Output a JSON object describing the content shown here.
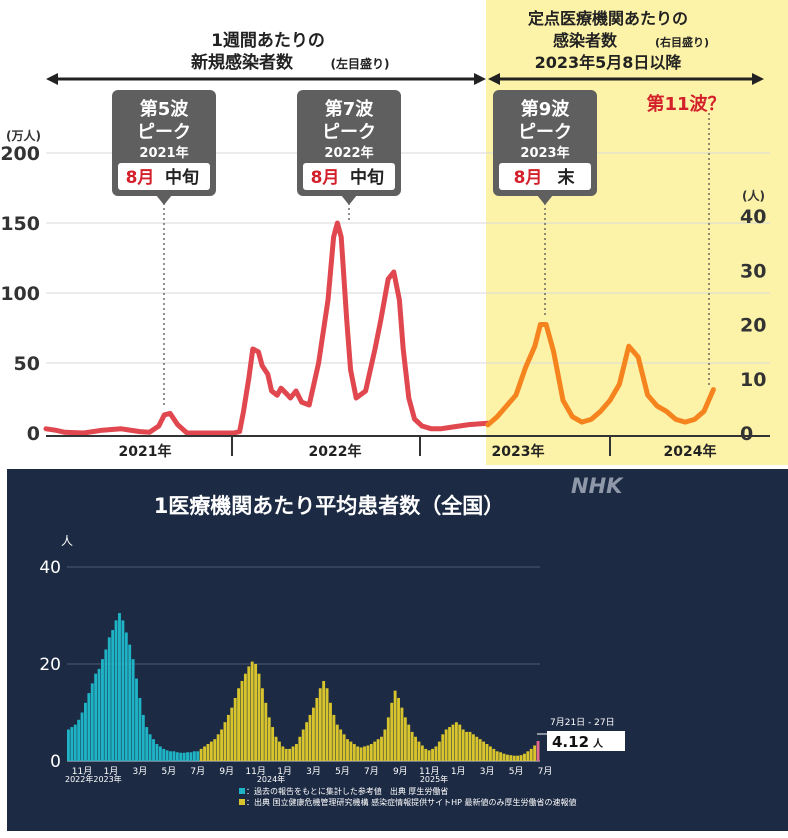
{
  "top": {
    "header_left": [
      "1週間あたりの",
      "新規感染者数"
    ],
    "header_left_axis_note": "(左目盛り)",
    "header_right": [
      "定点医療機関あたりの",
      "感染者数"
    ],
    "header_right_axis_note": "(右目盛り)",
    "header_right_date": "2023年5月8日以降",
    "left_unit": "(万人)",
    "right_unit": "(人)",
    "wave5": {
      "title": "第5波",
      "peak": "ピーク",
      "year": "2021年",
      "month": "8月",
      "period": "中旬"
    },
    "wave7": {
      "title": "第7波",
      "peak": "ピーク",
      "year": "2022年",
      "month": "8月",
      "period": "中旬"
    },
    "wave9": {
      "title": "第9波",
      "peak": "ピーク",
      "year": "2023年",
      "month": "8月",
      "period": "末"
    },
    "wave11": "第11波？",
    "colors": {
      "left_series": "#e0474f",
      "right_series": "#f5841f",
      "shade": "#fdf3a8",
      "box": "#5f5f5f"
    }
  },
  "bottom": {
    "title": "1医療機関あたり平均患者数（全国）",
    "logo": "NHK",
    "y_unit": "人",
    "callout_date": "7月21日 - 27日",
    "callout_value": "4.12",
    "callout_unit": "人",
    "legend1": "：過去の報告をもとに集計した参考値　出典 厚生労働省",
    "legend2": "：出典 国立健康危機管理研究機構 感染症情報提供サイトHP 最新値のみ厚生労働省の速報値",
    "colors": {
      "background": "#1c2a44",
      "ref_bars": "#1fb3c6",
      "main_bars": "#d8c42c",
      "latest_bar": "#e26a8a"
    }
  },
  "chart_data": [
    {
      "type": "line",
      "x_axis_labels": [
        "2021年",
        "2022年",
        "2023年",
        "2024年"
      ],
      "y_left": {
        "ticks": [
          0,
          50,
          100,
          150,
          200
        ],
        "unit": "(万人)",
        "ylim": [
          0,
          200
        ]
      },
      "y_right": {
        "ticks": [
          0,
          10,
          20,
          30,
          40
        ],
        "unit": "(人)",
        "ylim": [
          0,
          40
        ]
      },
      "series": [
        {
          "name": "1週間あたりの新規感染者数",
          "axis": "left",
          "x": [
            2021.0,
            2021.05,
            2021.1,
            2021.2,
            2021.3,
            2021.4,
            2021.5,
            2021.55,
            2021.6,
            2021.63,
            2021.66,
            2021.7,
            2021.75,
            2021.85,
            2021.95,
            2022.0,
            2022.03,
            2022.05,
            2022.08,
            2022.1,
            2022.13,
            2022.15,
            2022.18,
            2022.2,
            2022.23,
            2022.25,
            2022.28,
            2022.3,
            2022.33,
            2022.36,
            2022.4,
            2022.45,
            2022.5,
            2022.53,
            2022.55,
            2022.57,
            2022.6,
            2022.62,
            2022.65,
            2022.7,
            2022.75,
            2022.78,
            2022.82,
            2022.85,
            2022.88,
            2022.9,
            2022.93,
            2022.96,
            2023.0,
            2023.05,
            2023.1,
            2023.15,
            2023.2,
            2023.25,
            2023.35
          ],
          "values": [
            3,
            2,
            0.5,
            0,
            2,
            3,
            1,
            0.5,
            5,
            13,
            14,
            6,
            0,
            0,
            0,
            0,
            1,
            15,
            40,
            60,
            58,
            48,
            42,
            30,
            27,
            32,
            28,
            25,
            30,
            22,
            20,
            50,
            95,
            140,
            150,
            140,
            80,
            45,
            25,
            30,
            60,
            80,
            110,
            115,
            95,
            60,
            25,
            10,
            5,
            3,
            3,
            4,
            5,
            6,
            7
          ]
        },
        {
          "name": "定点医療機関あたりの感染者数",
          "axis": "right",
          "x": [
            2023.35,
            2023.4,
            2023.45,
            2023.5,
            2023.55,
            2023.6,
            2023.63,
            2023.66,
            2023.7,
            2023.75,
            2023.8,
            2023.85,
            2023.9,
            2023.95,
            2024.0,
            2024.05,
            2024.1,
            2024.15,
            2024.2,
            2024.25,
            2024.3,
            2024.35,
            2024.4,
            2024.45,
            2024.5,
            2024.55
          ],
          "values": [
            1.5,
            3,
            5,
            7,
            12,
            16,
            20,
            20,
            15,
            6,
            3,
            2,
            2.5,
            4,
            6,
            9,
            16,
            14,
            7,
            5,
            4,
            2.5,
            2,
            2.5,
            4,
            8
          ]
        }
      ],
      "annotations": [
        "第5波 ピーク 2021年 8月中旬",
        "第7波 ピーク 2022年 8月中旬",
        "第9波 ピーク 2023年 8月末",
        "第11波？"
      ]
    },
    {
      "type": "bar",
      "title": "1医療機関あたり平均患者数（全国）",
      "ylabel": "人",
      "ylim": [
        0,
        40
      ],
      "y_ticks": [
        0,
        20,
        40
      ],
      "x_tick_labels": [
        "11月",
        "1月",
        "3月",
        "5月",
        "7月",
        "9月",
        "11月",
        "1月",
        "3月",
        "5月",
        "7月",
        "9月",
        "11月",
        "1月",
        "3月",
        "5月",
        "7月"
      ],
      "x_year_labels": [
        "2022年2023年",
        "2024年",
        "2025年"
      ],
      "series": [
        {
          "name": "過去の報告をもとに集計した参考値",
          "values": [
            6.5,
            7,
            7.5,
            8.5,
            10,
            12,
            14,
            16,
            18,
            19,
            21,
            23,
            25.5,
            27,
            29,
            30.5,
            29,
            26.5,
            24,
            21,
            17,
            13,
            9.5,
            7,
            5.5,
            4.5,
            3.5,
            3,
            2.5,
            2.2,
            2,
            2,
            1.8,
            1.7,
            1.7,
            1.8,
            1.8,
            2,
            2
          ]
        },
        {
          "name": "国立健康危機管理研究機構 感染症情報提供サイトHP",
          "values": [
            2.5,
            3,
            3.5,
            4,
            4.5,
            5.5,
            6.5,
            8,
            9.5,
            11,
            13,
            15,
            16.5,
            18,
            19.5,
            20.5,
            20,
            18,
            15,
            12,
            9,
            7,
            5,
            4,
            3,
            2.5,
            2.5,
            3,
            3.5,
            5,
            6.5,
            8,
            9.5,
            11,
            13,
            15,
            16.5,
            15,
            12,
            9.5,
            7.5,
            6.5,
            5.5,
            4.5,
            4,
            3.5,
            3,
            2.8,
            3,
            3.2,
            3.5,
            4,
            4.5,
            5,
            6.5,
            9,
            12,
            14.5,
            13,
            11,
            9,
            7.5,
            6,
            5,
            4,
            3.2,
            2.5,
            2.2,
            2.5,
            3,
            4,
            5.5,
            6.5,
            7,
            7.5,
            8,
            7.5,
            6.5,
            6,
            6,
            5.5,
            5,
            4.5,
            4,
            3.5,
            3,
            2.5,
            2,
            1.8,
            1.5,
            1.3,
            1.2,
            1.1,
            1.1,
            1.2,
            1.5,
            2,
            2.5,
            3.2,
            4.12
          ]
        }
      ],
      "latest": {
        "label": "7月21日 - 27日",
        "value": 4.12
      }
    }
  ]
}
